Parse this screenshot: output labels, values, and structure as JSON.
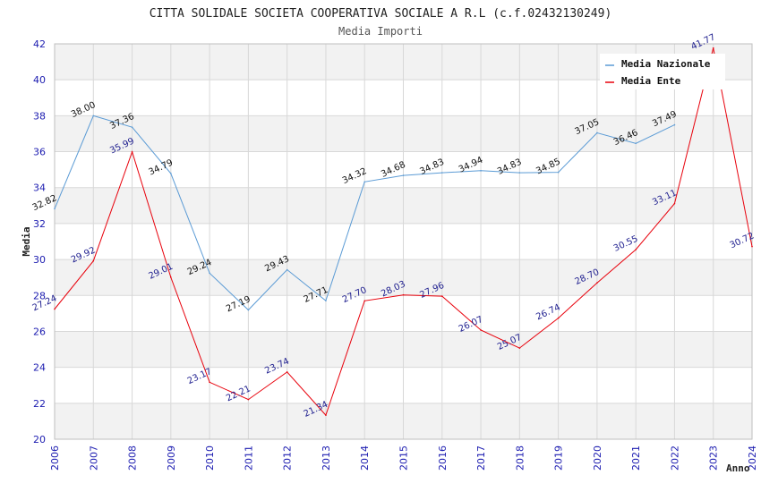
{
  "chart_data": {
    "type": "line",
    "title": "CITTA SOLIDALE SOCIETA COOPERATIVA SOCIALE A R.L (c.f.02432130249)",
    "subtitle": "Media Importi",
    "xlabel": "Anno",
    "ylabel": "Media",
    "ylim": [
      20,
      42
    ],
    "yticks": [
      "20",
      "22",
      "24",
      "26",
      "28",
      "30",
      "32",
      "34",
      "36",
      "38",
      "40",
      "42"
    ],
    "categories": [
      "2006",
      "2007",
      "2008",
      "2009",
      "2010",
      "2011",
      "2012",
      "2013",
      "2014",
      "2015",
      "2016",
      "2017",
      "2018",
      "2019",
      "2020",
      "2021",
      "2022",
      "2023",
      "2024"
    ],
    "legend_position": "top-right",
    "series": [
      {
        "name": "Media Nazionale",
        "color": "#5b9bd5",
        "label_color": "#111111",
        "values": [
          32.82,
          38.0,
          37.36,
          34.79,
          29.24,
          27.19,
          29.43,
          27.71,
          34.32,
          34.68,
          34.83,
          34.94,
          34.83,
          34.85,
          37.05,
          36.46,
          37.49,
          null,
          null
        ],
        "labels": [
          "32.82",
          "38.00",
          "37.36",
          "34.79",
          "29.24",
          "27.19",
          "29.43",
          "27.71",
          "34.32",
          "34.68",
          "34.83",
          "34.94",
          "34.83",
          "34.85",
          "37.05",
          "36.46",
          "37.49",
          null,
          null
        ]
      },
      {
        "name": "Media Ente",
        "color": "#e8000b",
        "label_color": "#1f1f8f",
        "values": [
          27.24,
          29.92,
          35.99,
          29.01,
          23.17,
          22.21,
          23.74,
          21.34,
          27.7,
          28.03,
          27.96,
          26.07,
          25.07,
          26.74,
          28.7,
          30.55,
          33.11,
          41.77,
          30.72
        ],
        "labels": [
          "27.24",
          "29.92",
          "35.99",
          "29.01",
          "23.17",
          "22.21",
          "23.74",
          "21.34",
          "27.70",
          "28.03",
          "27.96",
          "26.07",
          "25.07",
          "26.74",
          "28.70",
          "30.55",
          "33.11",
          "41.77",
          "30.72"
        ]
      }
    ],
    "colors": {
      "band": "#f2f2f2",
      "grid": "#d8d8d8",
      "tick_text": "#1c1cb0"
    }
  }
}
